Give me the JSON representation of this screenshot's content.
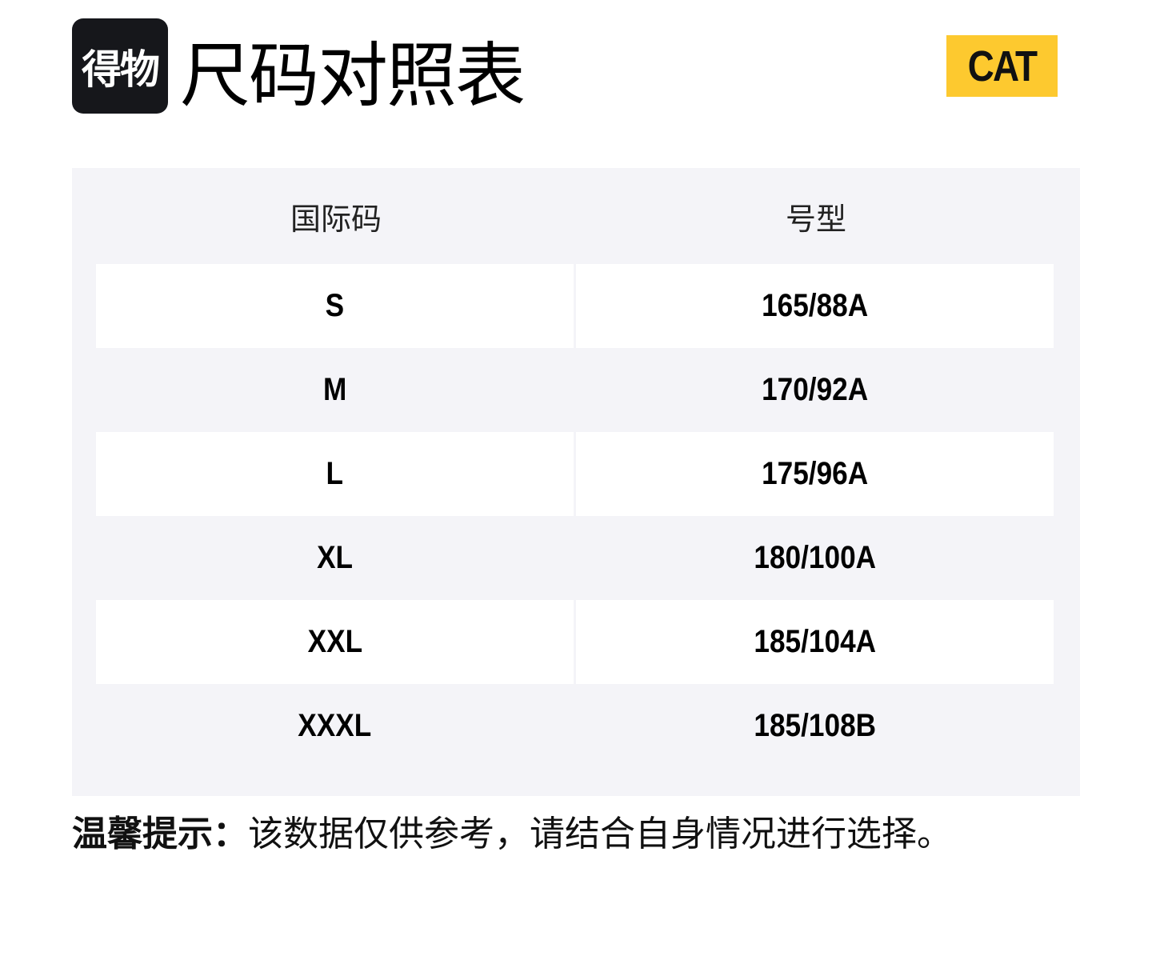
{
  "header": {
    "app_logo_text": "得物",
    "title": "尺码对照表",
    "brand_logo_text": "CAT"
  },
  "table": {
    "columns": [
      "国际码",
      "号型"
    ],
    "rows": [
      {
        "size": "S",
        "spec": "165/88A"
      },
      {
        "size": "M",
        "spec": "170/92A"
      },
      {
        "size": "L",
        "spec": "175/96A"
      },
      {
        "size": "XL",
        "spec": "180/100A"
      },
      {
        "size": "XXL",
        "spec": "185/104A"
      },
      {
        "size": "XXXL",
        "spec": "185/108B"
      }
    ]
  },
  "note": {
    "label": "温馨提示：",
    "text": "该数据仅供参考，请结合自身情况进行选择。"
  },
  "colors": {
    "brand_yellow": "#fdc92f",
    "table_bg": "#f4f4f8",
    "logo_bg": "#16171b"
  }
}
